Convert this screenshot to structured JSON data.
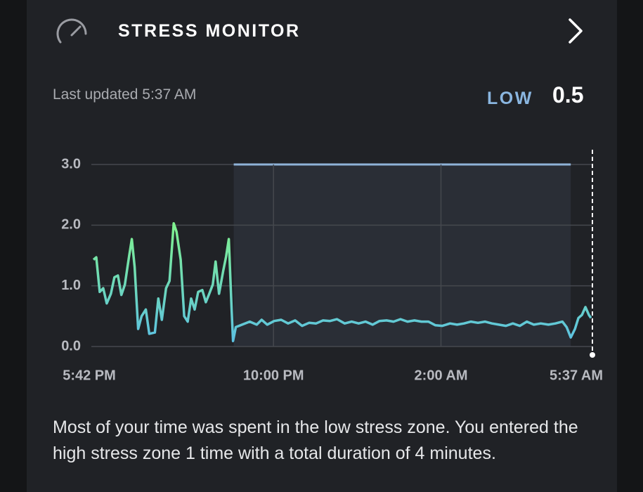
{
  "header": {
    "title": "STRESS MONITOR",
    "last_updated": "Last updated 5:37 AM"
  },
  "status": {
    "label": "LOW",
    "value": 0.5
  },
  "chart_data": {
    "type": "line",
    "x": [
      "17:42",
      "17:46",
      "17:51",
      "17:56",
      "18:01",
      "18:07",
      "18:12",
      "18:17",
      "18:22",
      "18:27",
      "18:33",
      "18:37",
      "18:41",
      "18:46",
      "18:51",
      "18:57",
      "19:02",
      "19:10",
      "19:15",
      "19:20",
      "19:26",
      "19:31",
      "19:37",
      "19:41",
      "19:47",
      "19:52",
      "19:57",
      "20:02",
      "20:07",
      "20:12",
      "20:18",
      "20:23",
      "20:28",
      "20:33",
      "20:37",
      "20:42",
      "20:48",
      "20:52",
      "20:56",
      "21:00",
      "21:02",
      "21:06",
      "21:15",
      "21:26",
      "21:36",
      "21:43",
      "21:51",
      "22:01",
      "22:11",
      "22:21",
      "22:31",
      "22:41",
      "22:51",
      "23:01",
      "23:11",
      "23:21",
      "23:31",
      "23:42",
      "23:52",
      "00:02",
      "00:12",
      "00:22",
      "00:32",
      "00:42",
      "00:52",
      "01:02",
      "01:12",
      "01:22",
      "01:32",
      "01:42",
      "01:52",
      "02:02",
      "02:13",
      "02:23",
      "02:33",
      "02:43",
      "02:53",
      "03:03",
      "03:13",
      "03:23",
      "03:33",
      "03:43",
      "03:53",
      "04:03",
      "04:13",
      "04:23",
      "04:34",
      "04:44",
      "04:54",
      "05:00",
      "05:06",
      "05:12",
      "05:17",
      "05:22",
      "05:27",
      "05:32",
      "05:35"
    ],
    "values": [
      1.43,
      1.47,
      0.9,
      0.96,
      0.71,
      0.87,
      1.14,
      1.17,
      0.85,
      1.02,
      1.48,
      1.77,
      1.31,
      0.29,
      0.5,
      0.61,
      0.21,
      0.23,
      0.79,
      0.44,
      0.96,
      1.08,
      2.03,
      1.89,
      1.43,
      0.5,
      0.41,
      0.79,
      0.61,
      0.9,
      0.93,
      0.73,
      0.87,
      1.02,
      1.4,
      0.87,
      1.25,
      1.48,
      1.77,
      0.61,
      0.09,
      0.32,
      0.36,
      0.41,
      0.36,
      0.44,
      0.36,
      0.42,
      0.44,
      0.38,
      0.43,
      0.34,
      0.39,
      0.38,
      0.43,
      0.42,
      0.45,
      0.38,
      0.41,
      0.38,
      0.41,
      0.36,
      0.42,
      0.43,
      0.41,
      0.45,
      0.41,
      0.43,
      0.41,
      0.41,
      0.35,
      0.34,
      0.38,
      0.36,
      0.38,
      0.41,
      0.39,
      0.41,
      0.38,
      0.36,
      0.34,
      0.38,
      0.34,
      0.41,
      0.36,
      0.38,
      0.36,
      0.38,
      0.41,
      0.32,
      0.15,
      0.29,
      0.47,
      0.52,
      0.65,
      0.52,
      0.47
    ],
    "color_low": "#5bbfe6",
    "color_high": "#80f28e",
    "sleep": {
      "start": "21:03",
      "end": "05:06",
      "color": "#8fb2d8",
      "fill": "#2a2e36"
    },
    "xlim": [
      "17:42",
      "05:37"
    ],
    "xticks": [
      {
        "value": "17:42",
        "label": "5:42 PM"
      },
      {
        "value": "22:00",
        "label": "10:00 PM"
      },
      {
        "value": "02:00",
        "label": "2:00 AM"
      },
      {
        "value": "05:37",
        "label": "5:37 AM"
      }
    ],
    "ylim": [
      0,
      3
    ],
    "yticks": [
      {
        "value": 0,
        "label": "0.0"
      },
      {
        "value": 1,
        "label": "1.0"
      },
      {
        "value": 2,
        "label": "2.0"
      },
      {
        "value": 3,
        "label": "3.0"
      }
    ],
    "grid": true
  },
  "summary": "Most of your time was spent in the low stress zone. You entered the high stress zone 1 time with a total duration of 4 minutes."
}
